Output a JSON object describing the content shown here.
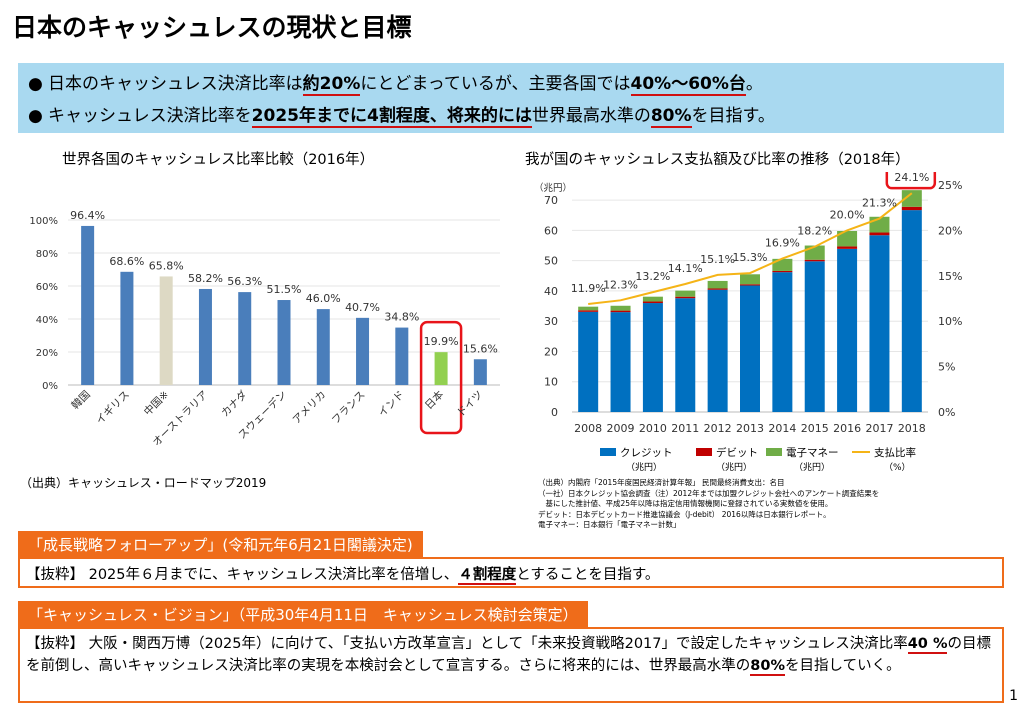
{
  "title": "日本のキャッシュレスの現状と目標",
  "bullets": {
    "dot": "●",
    "b1": {
      "t1": "日本のキャッシュレス決済比率は",
      "h1": "約20%",
      "t2": "にとどまっているが、主要各国では",
      "h2": "40%～60%台",
      "t3": "。"
    },
    "b2": {
      "t1": "キャッシュレス決済比率を",
      "h1": "2025年までに4割程度、将来的には",
      "t2": "世界最高水準の",
      "h2": "80%",
      "t3": "を目指す。"
    }
  },
  "chart_data": [
    {
      "type": "bar",
      "title": "世界各国のキャッシュレス比率比較（2016年）",
      "categories": [
        "韓国",
        "イギリス",
        "中国※",
        "オーストラリア",
        "カナダ",
        "スウェーデン",
        "アメリカ",
        "フランス",
        "インド",
        "日本",
        "ドイツ"
      ],
      "values": [
        96.4,
        68.6,
        65.8,
        58.2,
        56.3,
        51.5,
        46.0,
        40.7,
        34.8,
        19.9,
        15.6
      ],
      "value_labels": [
        "96.4%",
        "68.6%",
        "65.8%",
        "58.2%",
        "56.3%",
        "51.5%",
        "46.0%",
        "40.7%",
        "34.8%",
        "19.9%",
        "15.6%"
      ],
      "yticks": [
        "0%",
        "20%",
        "40%",
        "60%",
        "80%",
        "100%"
      ],
      "ylim": [
        0,
        100
      ],
      "colors": {
        "default": "#4a7ebb",
        "china": "#ddd9c4",
        "japan": "#92d050",
        "highlight": "#e8141a"
      },
      "highlight_category": "日本",
      "source": "（出典）キャッシュレス・ロードマップ2019"
    },
    {
      "type": "bar",
      "stacked": true,
      "title": "我が国のキャッシュレス支払額及び比率の推移（2018年）",
      "y_unit": "（兆円）",
      "categories": [
        "2008",
        "2009",
        "2010",
        "2011",
        "2012",
        "2013",
        "2014",
        "2015",
        "2016",
        "2017",
        "2018"
      ],
      "series": [
        {
          "name": "クレジット",
          "unit": "（兆円）",
          "color": "#0070c0",
          "values": [
            33.1,
            33.0,
            36.0,
            37.6,
            40.4,
            41.8,
            46.2,
            49.8,
            53.9,
            58.4,
            66.7
          ]
        },
        {
          "name": "デビット",
          "unit": "（兆円）",
          "color": "#c00000",
          "values": [
            0.5,
            0.5,
            0.5,
            0.5,
            0.4,
            0.4,
            0.4,
            0.5,
            0.8,
            0.9,
            1.1
          ]
        },
        {
          "name": "電子マネー",
          "unit": "（兆円）",
          "color": "#70ad47",
          "values": [
            1.2,
            1.6,
            1.6,
            2.0,
            2.5,
            3.3,
            4.0,
            4.7,
            5.1,
            5.2,
            5.5
          ]
        }
      ],
      "ratio_series": {
        "name": "支払比率",
        "unit": "（%）",
        "color": "#f5b417",
        "values": [
          11.9,
          12.3,
          13.2,
          14.1,
          15.1,
          15.3,
          16.9,
          18.2,
          20.0,
          21.3,
          24.1
        ],
        "labels": [
          "11.9%",
          "12.3%",
          "13.2%",
          "14.1%",
          "15.1%",
          "15.3%",
          "16.9%",
          "18.2%",
          "20.0%",
          "21.3%",
          "24.1%"
        ]
      },
      "yticks_left": [
        "0",
        "10",
        "20",
        "30",
        "40",
        "50",
        "60",
        "70"
      ],
      "yticks_right": [
        "0%",
        "5%",
        "10%",
        "15%",
        "20%",
        "25%"
      ],
      "ylim_left": [
        0,
        75
      ],
      "ylim_right": [
        0,
        25
      ]
    }
  ],
  "notes": [
    "（出典）内閣府「2015年度国民経済計算年報」 民間最終消費支出：名目",
    "（一社）日本クレジット協会調査（注）2012年までは加盟クレジット会社へのアンケート調査結果を",
    "　基にした推計値、平成25年以降は指定信用情報機関に登録されている実数値を使用。",
    "デビット：日本デビットカード推進協議会（J-debit） 2016以降は日本銀行レポート。",
    "電子マネー：日本銀行「電子マネー計数」"
  ],
  "policy1": {
    "tag": "「成長戦略フォローアップ」(令和元年6月21日閣議決定)",
    "t1": "【抜粋】 2025年６月までに、キャッシュレス決済比率を倍増し、",
    "h1": "４割程度",
    "t2": "とすることを目指す。"
  },
  "policy2": {
    "tag": "「キャッシュレス・ビジョン」（平成30年4月11日　キャッシュレス検討会策定）",
    "t1": "【抜粋】 大阪・関西万博（2025年）に向けて、「支払い方改革宣言」として「未来投資戦略2017」で設定したキャッシュレス決済比率",
    "h1": "40 %",
    "t2": "の目標を前倒し、高いキャッシュレス決済比率の実現を本検討会として宣言する。さらに将来的には、世界最高水準の",
    "h2": "80%",
    "t3": "を目指していく。"
  },
  "page_number": "1"
}
